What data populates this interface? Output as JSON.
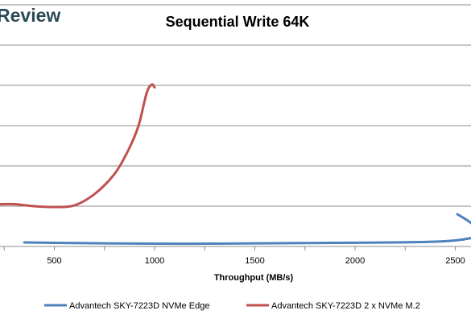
{
  "brand": {
    "text": "Review",
    "color": "#2b4a59"
  },
  "chart_data": {
    "type": "line",
    "title": "Sequential Write 64K",
    "xlabel": "Throughput (MB/s)",
    "ylabel": "",
    "xlim": [
      0,
      2600
    ],
    "ylim": [
      0,
      6
    ],
    "x_ticks": [
      500,
      1000,
      1500,
      2000,
      2500
    ],
    "x_tick_labels": [
      "500",
      "1000",
      "1500",
      "2000",
      "2500"
    ],
    "y_gridlines": [
      1,
      2,
      3,
      4,
      5,
      6
    ],
    "grid": true,
    "legend_position": "bottom",
    "series": [
      {
        "name": "Advantech SKY-7223D NVMe Edge",
        "color": "#4f81bd",
        "points": [
          [
            350,
            0.1
          ],
          [
            500,
            0.09
          ],
          [
            700,
            0.08
          ],
          [
            1000,
            0.07
          ],
          [
            1300,
            0.07
          ],
          [
            1600,
            0.08
          ],
          [
            1900,
            0.09
          ],
          [
            2200,
            0.1
          ],
          [
            2400,
            0.12
          ],
          [
            2500,
            0.15
          ],
          [
            2570,
            0.2
          ],
          [
            2600,
            0.25
          ]
        ]
      },
      {
        "name": "Advantech SKY-7223D 2 x NVMe M.2",
        "color": "#c0504d",
        "points": [
          [
            0,
            0.55
          ],
          [
            60,
            0.8
          ],
          [
            130,
            1.1
          ],
          [
            200,
            1.05
          ],
          [
            300,
            1.05
          ],
          [
            400,
            1.0
          ],
          [
            500,
            0.98
          ],
          [
            600,
            1.02
          ],
          [
            700,
            1.3
          ],
          [
            800,
            1.8
          ],
          [
            870,
            2.4
          ],
          [
            920,
            3.0
          ],
          [
            960,
            3.8
          ],
          [
            985,
            4.02
          ],
          [
            1000,
            3.95
          ]
        ]
      },
      {
        "name": "",
        "color": "#4f81bd",
        "points": [
          [
            2510,
            0.8
          ],
          [
            2560,
            0.65
          ],
          [
            2600,
            0.5
          ]
        ]
      }
    ]
  }
}
